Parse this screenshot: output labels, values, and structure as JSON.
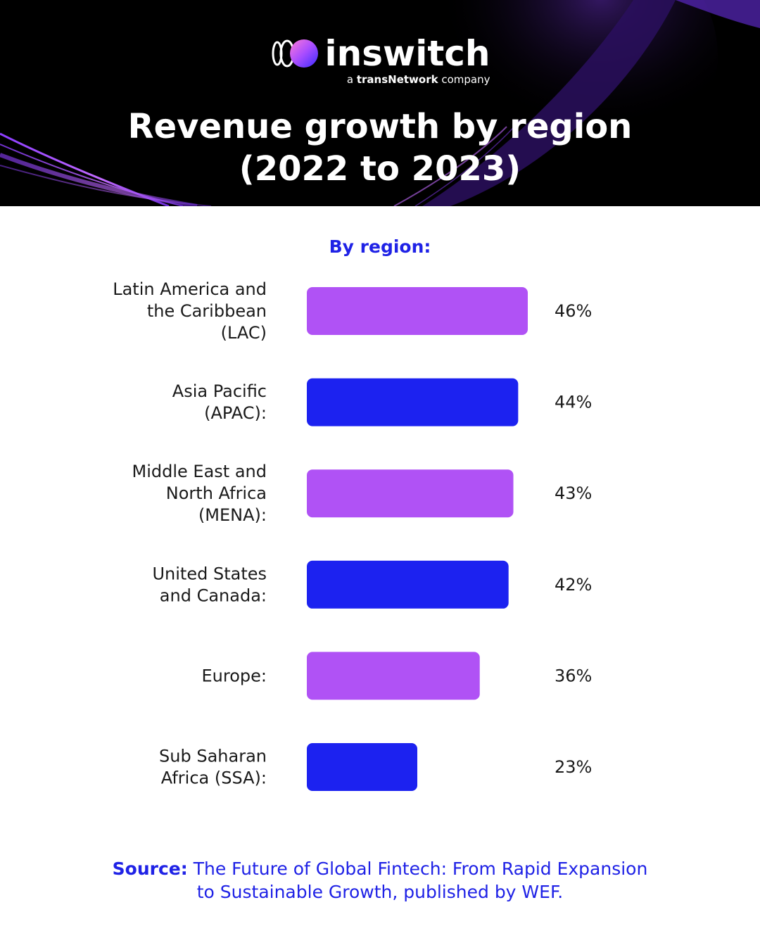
{
  "brand": {
    "name": "inswitch",
    "tagline_prefix": "a ",
    "tagline_bold": "transNetwork",
    "tagline_suffix": " company"
  },
  "title_line1": "Revenue growth by region",
  "title_line2": "(2022 to 2023)",
  "colors": {
    "purple": "#b052f5",
    "blue": "#1c22f0",
    "heading": "#1f22e6",
    "text": "#1a1a1a"
  },
  "chart_data": {
    "type": "bar",
    "orientation": "horizontal",
    "title": "By region:",
    "categories": [
      [
        "Latin America and",
        "the Caribbean",
        "(LAC)"
      ],
      [
        "Asia Pacific",
        "(APAC):"
      ],
      [
        "Middle East and",
        "North Africa",
        "(MENA):"
      ],
      [
        "United States",
        "and Canada:"
      ],
      [
        "Europe:"
      ],
      [
        "Sub Saharan",
        "Africa (SSA):"
      ]
    ],
    "values": [
      46,
      44,
      43,
      42,
      36,
      23
    ],
    "value_labels": [
      "46%",
      "44%",
      "43%",
      "42%",
      "36%",
      "23%"
    ],
    "bar_colors": [
      "#b052f5",
      "#1c22f0",
      "#b052f5",
      "#1c22f0",
      "#b052f5",
      "#1c22f0"
    ],
    "xlim": [
      0,
      46
    ],
    "grid": false,
    "legend": "none"
  },
  "source": {
    "label": "Source:",
    "text": " The Future of Global Fintech: From Rapid Expansion to Sustainable Growth, published by WEF."
  }
}
